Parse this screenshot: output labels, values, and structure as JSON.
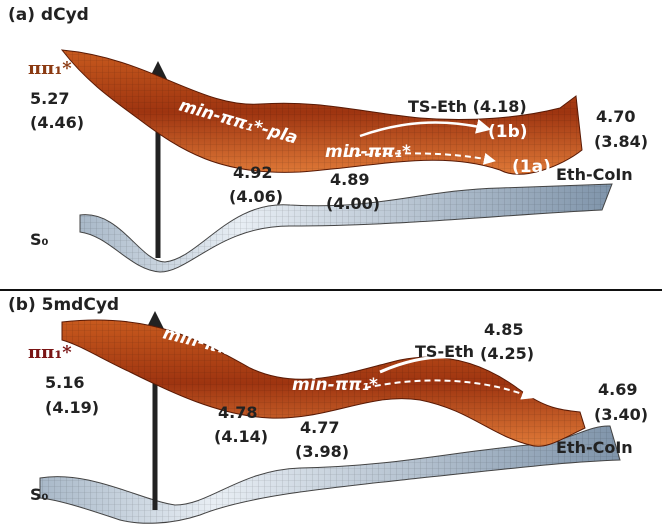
{
  "panels": [
    {
      "title": "(a) dCyd",
      "excited_state": "ππ₁*",
      "ground_state": "S₀",
      "annotations": [
        "5.27",
        "(4.46)",
        "min-ππ₁*-pla",
        "4.92",
        "(4.06)",
        "min-ππ₁*",
        "4.89",
        "(4.00)",
        "TS-Eth (4.18)",
        "(1b)",
        "(1a)",
        "4.70",
        "(3.84)",
        "Eth-CoIn"
      ]
    },
    {
      "title": "(b) 5mdCyd",
      "excited_state": "ππ₁*",
      "ground_state": "S₀",
      "annotations": [
        "5.16",
        "(4.19)",
        "min-ππ₁*-pla",
        "4.78",
        "(4.14)",
        "min-ππ₁*",
        "4.77",
        "(3.98)",
        "TS-Eth",
        "4.85",
        "(4.25)",
        "4.69",
        "(3.40)",
        "Eth-CoIn"
      ]
    }
  ]
}
